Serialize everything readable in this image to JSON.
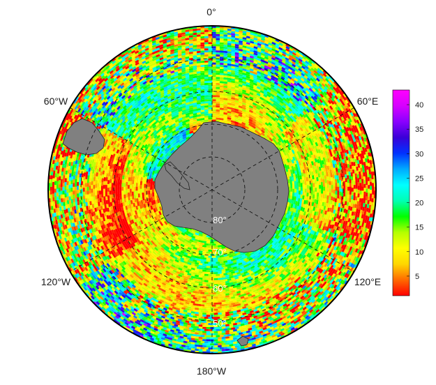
{
  "map": {
    "projection": "south-polar-stereographic",
    "longitude_labels": {
      "top": "0°",
      "upper_left": "60°W",
      "upper_right": "60°E",
      "lower_left": "120°W",
      "lower_right": "120°E",
      "bottom": "180°W"
    },
    "latitude_labels": [
      "80°",
      "70°",
      "60°",
      "50°"
    ],
    "land_color": "#808080",
    "graticule_style": "dashed"
  },
  "colorbar": {
    "ticks": [
      "5",
      "10",
      "15",
      "20",
      "25",
      "30",
      "35",
      "40"
    ],
    "range": [
      1,
      43
    ],
    "colormap": [
      "#ff0000",
      "#ff6a00",
      "#ffd700",
      "#ffff00",
      "#b4ff00",
      "#00ff00",
      "#00ffb4",
      "#00ffff",
      "#00aaff",
      "#0032ff",
      "#3a00d8",
      "#8a00ff",
      "#d700ff",
      "#ff00ff"
    ]
  }
}
